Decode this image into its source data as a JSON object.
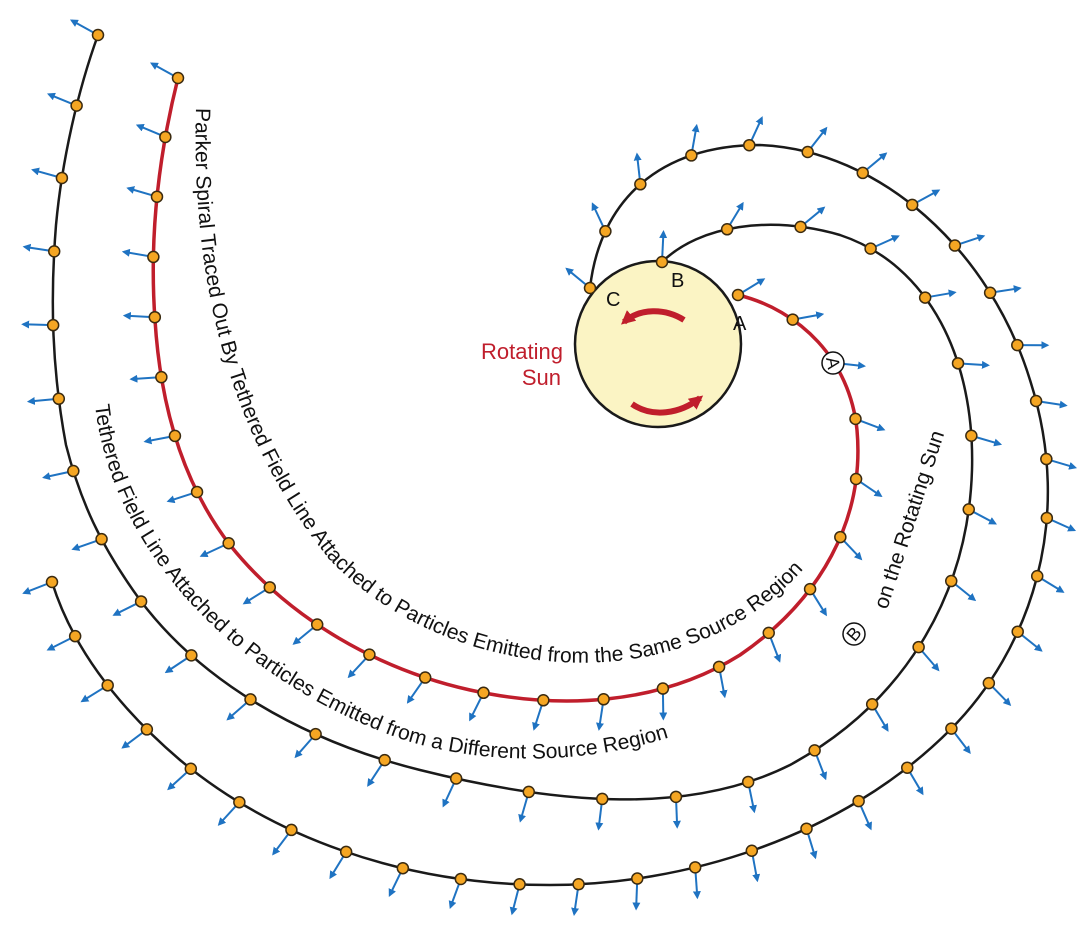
{
  "sun": {
    "label_line1": "Rotating",
    "label_line2": "Sun",
    "fill": "#fbf4c4",
    "stroke": "#1a1a1a"
  },
  "points": {
    "a": "A",
    "b": "B",
    "c": "C"
  },
  "captions": {
    "red_spiral": "Parker Spiral Traced Out By Tethered Field Line Attached to Particles Emitted from the Same Source Region",
    "red_badge": "A",
    "black_spiral": "Tethered Field Line Attached to Particles Emitted from a Different Source Region",
    "black_badge": "B",
    "black_suffix": "on the Rotating Sun"
  },
  "colors": {
    "red_field_line": "#c01e2c",
    "black_field_line": "#1a1a1a",
    "particle_fill": "#f5a623",
    "particle_stroke": "#3a2a10",
    "arrow": "#1f73c2",
    "rotation_arrow": "#c01e2c"
  },
  "icons": {
    "particle": "particle-dot-icon",
    "velocity": "outward-arrow-icon",
    "rotation": "rotation-arrow-icon"
  }
}
